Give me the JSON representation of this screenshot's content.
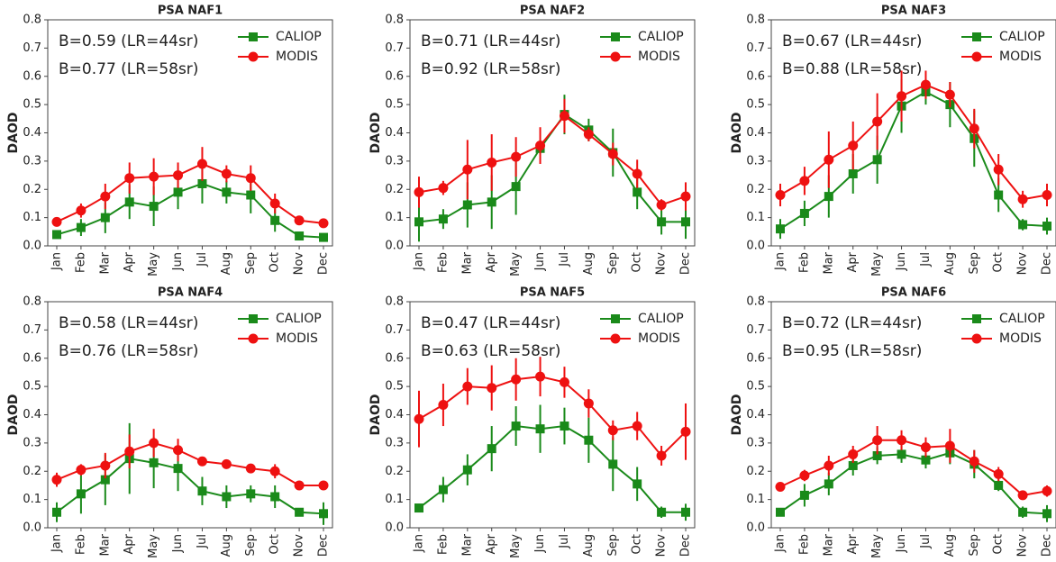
{
  "chart_data": [
    {
      "type": "line",
      "title": "PSA NAF1",
      "ylabel": "DAOD",
      "annotations": [
        "B=0.59 (LR=44sr)",
        "B=0.77 (LR=58sr)"
      ],
      "categories": [
        "Jan",
        "Feb",
        "Mar",
        "Apr",
        "May",
        "Jun",
        "Jul",
        "Aug",
        "Sep",
        "Oct",
        "Nov",
        "Dec"
      ],
      "ylim": [
        0,
        0.8
      ],
      "yticks": [
        {
          "value": 0,
          "label": "0.0"
        },
        0.1,
        0.2,
        0.3,
        0.4,
        0.5,
        0.6,
        0.7,
        0.8
      ],
      "legend": "upper right",
      "series": [
        {
          "name": "CALIOP",
          "color": "#1a8a1a",
          "marker": "square",
          "values": [
            0.04,
            0.065,
            0.1,
            0.155,
            0.14,
            0.19,
            0.22,
            0.19,
            0.18,
            0.09,
            0.035,
            0.03
          ],
          "errors": [
            0.01,
            0.03,
            0.055,
            0.06,
            0.07,
            0.06,
            0.07,
            0.04,
            0.065,
            0.04,
            0.01,
            0.01
          ]
        },
        {
          "name": "MODIS",
          "color": "#ee1111",
          "marker": "circle",
          "values": [
            0.085,
            0.125,
            0.175,
            0.24,
            0.245,
            0.25,
            0.29,
            0.255,
            0.24,
            0.15,
            0.09,
            0.08
          ],
          "errors": [
            0.01,
            0.025,
            0.045,
            0.055,
            0.065,
            0.045,
            0.06,
            0.03,
            0.045,
            0.035,
            0.01,
            0.01
          ]
        }
      ]
    },
    {
      "type": "line",
      "title": "PSA NAF2",
      "ylabel": "DAOD",
      "annotations": [
        "B=0.71 (LR=44sr)",
        "B=0.92 (LR=58sr)"
      ],
      "categories": [
        "Jan",
        "Feb",
        "Mar",
        "Apr",
        "May",
        "Jun",
        "Jul",
        "Aug",
        "Sep",
        "Oct",
        "Nov",
        "Dec"
      ],
      "ylim": [
        0,
        0.8
      ],
      "yticks": [
        {
          "value": 0,
          "label": "0.0"
        },
        0.1,
        0.2,
        0.3,
        0.4,
        0.5,
        0.6,
        0.7,
        0.8
      ],
      "legend": "upper right",
      "series": [
        {
          "name": "CALIOP",
          "color": "#1a8a1a",
          "marker": "square",
          "values": [
            0.085,
            0.095,
            0.145,
            0.155,
            0.21,
            0.345,
            0.465,
            0.41,
            0.33,
            0.19,
            0.085,
            0.085
          ],
          "errors": [
            0.07,
            0.035,
            0.08,
            0.095,
            0.1,
            0.02,
            0.07,
            0.04,
            0.085,
            0.06,
            0.045,
            0.06
          ]
        },
        {
          "name": "MODIS",
          "color": "#ee1111",
          "marker": "circle",
          "values": [
            0.19,
            0.205,
            0.27,
            0.295,
            0.315,
            0.355,
            0.46,
            0.395,
            0.325,
            0.255,
            0.145,
            0.175
          ],
          "errors": [
            0.055,
            0.025,
            0.105,
            0.1,
            0.07,
            0.065,
            0.06,
            0.025,
            0.04,
            0.05,
            0.02,
            0.05
          ]
        }
      ]
    },
    {
      "type": "line",
      "title": "PSA NAF3",
      "ylabel": "DAOD",
      "annotations": [
        "B=0.67 (LR=44sr)",
        "B=0.88 (LR=58sr)"
      ],
      "categories": [
        "Jan",
        "Feb",
        "Mar",
        "Apr",
        "May",
        "Jun",
        "Jul",
        "Aug",
        "Sep",
        "Oct",
        "Nov",
        "Dec"
      ],
      "ylim": [
        0,
        0.8
      ],
      "yticks": [
        {
          "value": 0,
          "label": "0.0"
        },
        0.1,
        0.2,
        0.3,
        0.4,
        0.5,
        0.6,
        0.7,
        0.8
      ],
      "legend": "upper right",
      "series": [
        {
          "name": "CALIOP",
          "color": "#1a8a1a",
          "marker": "square",
          "values": [
            0.06,
            0.115,
            0.175,
            0.255,
            0.305,
            0.495,
            0.545,
            0.5,
            0.38,
            0.18,
            0.075,
            0.07
          ],
          "errors": [
            0.035,
            0.045,
            0.075,
            0.07,
            0.085,
            0.095,
            0.045,
            0.08,
            0.1,
            0.06,
            0.02,
            0.03
          ]
        },
        {
          "name": "MODIS",
          "color": "#ee1111",
          "marker": "circle",
          "values": [
            0.18,
            0.23,
            0.305,
            0.355,
            0.44,
            0.53,
            0.57,
            0.535,
            0.415,
            0.27,
            0.165,
            0.18
          ],
          "errors": [
            0.04,
            0.05,
            0.1,
            0.085,
            0.1,
            0.09,
            0.05,
            0.045,
            0.07,
            0.055,
            0.03,
            0.04
          ]
        }
      ]
    },
    {
      "type": "line",
      "title": "PSA NAF4",
      "ylabel": "DAOD",
      "annotations": [
        "B=0.58 (LR=44sr)",
        "B=0.76 (LR=58sr)"
      ],
      "categories": [
        "Jan",
        "Feb",
        "Mar",
        "Apr",
        "May",
        "Jun",
        "Jul",
        "Aug",
        "Sep",
        "Oct",
        "Nov",
        "Dec"
      ],
      "ylim": [
        0,
        0.8
      ],
      "yticks": [
        {
          "value": 0,
          "label": "0.0"
        },
        0.1,
        0.2,
        0.3,
        0.4,
        0.5,
        0.6,
        0.7,
        0.8
      ],
      "legend": "upper right",
      "series": [
        {
          "name": "CALIOP",
          "color": "#1a8a1a",
          "marker": "square",
          "values": [
            0.055,
            0.12,
            0.17,
            0.245,
            0.23,
            0.21,
            0.13,
            0.11,
            0.12,
            0.11,
            0.055,
            0.05
          ],
          "errors": [
            0.035,
            0.07,
            0.09,
            0.125,
            0.09,
            0.08,
            0.05,
            0.04,
            0.03,
            0.04,
            0.015,
            0.04
          ]
        },
        {
          "name": "MODIS",
          "color": "#ee1111",
          "marker": "circle",
          "values": [
            0.17,
            0.205,
            0.22,
            0.27,
            0.3,
            0.275,
            0.235,
            0.225,
            0.21,
            0.2,
            0.15,
            0.15
          ],
          "errors": [
            0.025,
            0.02,
            0.045,
            0.06,
            0.05,
            0.04,
            0.015,
            0.01,
            0.01,
            0.025,
            0.01,
            0.01
          ]
        }
      ]
    },
    {
      "type": "line",
      "title": "PSA NAF5",
      "ylabel": "DAOD",
      "annotations": [
        "B=0.47 (LR=44sr)",
        "B=0.63 (LR=58sr)"
      ],
      "categories": [
        "Jan",
        "Feb",
        "Mar",
        "Apr",
        "May",
        "Jun",
        "Jul",
        "Aug",
        "Sep",
        "Oct",
        "Nov",
        "Dec"
      ],
      "ylim": [
        0,
        0.8
      ],
      "yticks": [
        {
          "value": 0,
          "label": "0.0"
        },
        0.1,
        0.2,
        0.3,
        0.4,
        0.5,
        0.6,
        0.7,
        0.8
      ],
      "legend": "upper right",
      "series": [
        {
          "name": "CALIOP",
          "color": "#1a8a1a",
          "marker": "square",
          "values": [
            0.07,
            0.135,
            0.205,
            0.28,
            0.36,
            0.35,
            0.36,
            0.31,
            0.225,
            0.155,
            0.055,
            0.055
          ],
          "errors": [
            0.015,
            0.045,
            0.055,
            0.08,
            0.07,
            0.085,
            0.065,
            0.08,
            0.095,
            0.06,
            0.02,
            0.03
          ]
        },
        {
          "name": "MODIS",
          "color": "#ee1111",
          "marker": "circle",
          "values": [
            0.385,
            0.435,
            0.5,
            0.495,
            0.525,
            0.535,
            0.515,
            0.44,
            0.345,
            0.36,
            0.255,
            0.34
          ],
          "errors": [
            0.1,
            0.075,
            0.065,
            0.08,
            0.075,
            0.07,
            0.055,
            0.05,
            0.035,
            0.05,
            0.035,
            0.1
          ]
        }
      ]
    },
    {
      "type": "line",
      "title": "PSA NAF6",
      "ylabel": "DAOD",
      "annotations": [
        "B=0.72 (LR=44sr)",
        "B=0.95 (LR=58sr)"
      ],
      "categories": [
        "Jan",
        "Feb",
        "Mar",
        "Apr",
        "May",
        "Jun",
        "Jul",
        "Aug",
        "Sep",
        "Oct",
        "Nov",
        "Dec"
      ],
      "ylim": [
        0,
        0.8
      ],
      "yticks": [
        {
          "value": 0,
          "label": "0.0"
        },
        0.1,
        0.2,
        0.3,
        0.4,
        0.5,
        0.6,
        0.7,
        0.8
      ],
      "legend": "upper right",
      "series": [
        {
          "name": "CALIOP",
          "color": "#1a8a1a",
          "marker": "square",
          "values": [
            0.055,
            0.115,
            0.155,
            0.22,
            0.255,
            0.26,
            0.24,
            0.265,
            0.225,
            0.15,
            0.055,
            0.05
          ],
          "errors": [
            0.01,
            0.04,
            0.04,
            0.035,
            0.03,
            0.03,
            0.03,
            0.04,
            0.05,
            0.02,
            0.02,
            0.03
          ]
        },
        {
          "name": "MODIS",
          "color": "#ee1111",
          "marker": "circle",
          "values": [
            0.145,
            0.185,
            0.22,
            0.26,
            0.31,
            0.31,
            0.285,
            0.29,
            0.235,
            0.19,
            0.115,
            0.13
          ],
          "errors": [
            0.015,
            0.02,
            0.035,
            0.03,
            0.05,
            0.035,
            0.035,
            0.06,
            0.04,
            0.025,
            0.01,
            0.02
          ]
        }
      ]
    }
  ]
}
